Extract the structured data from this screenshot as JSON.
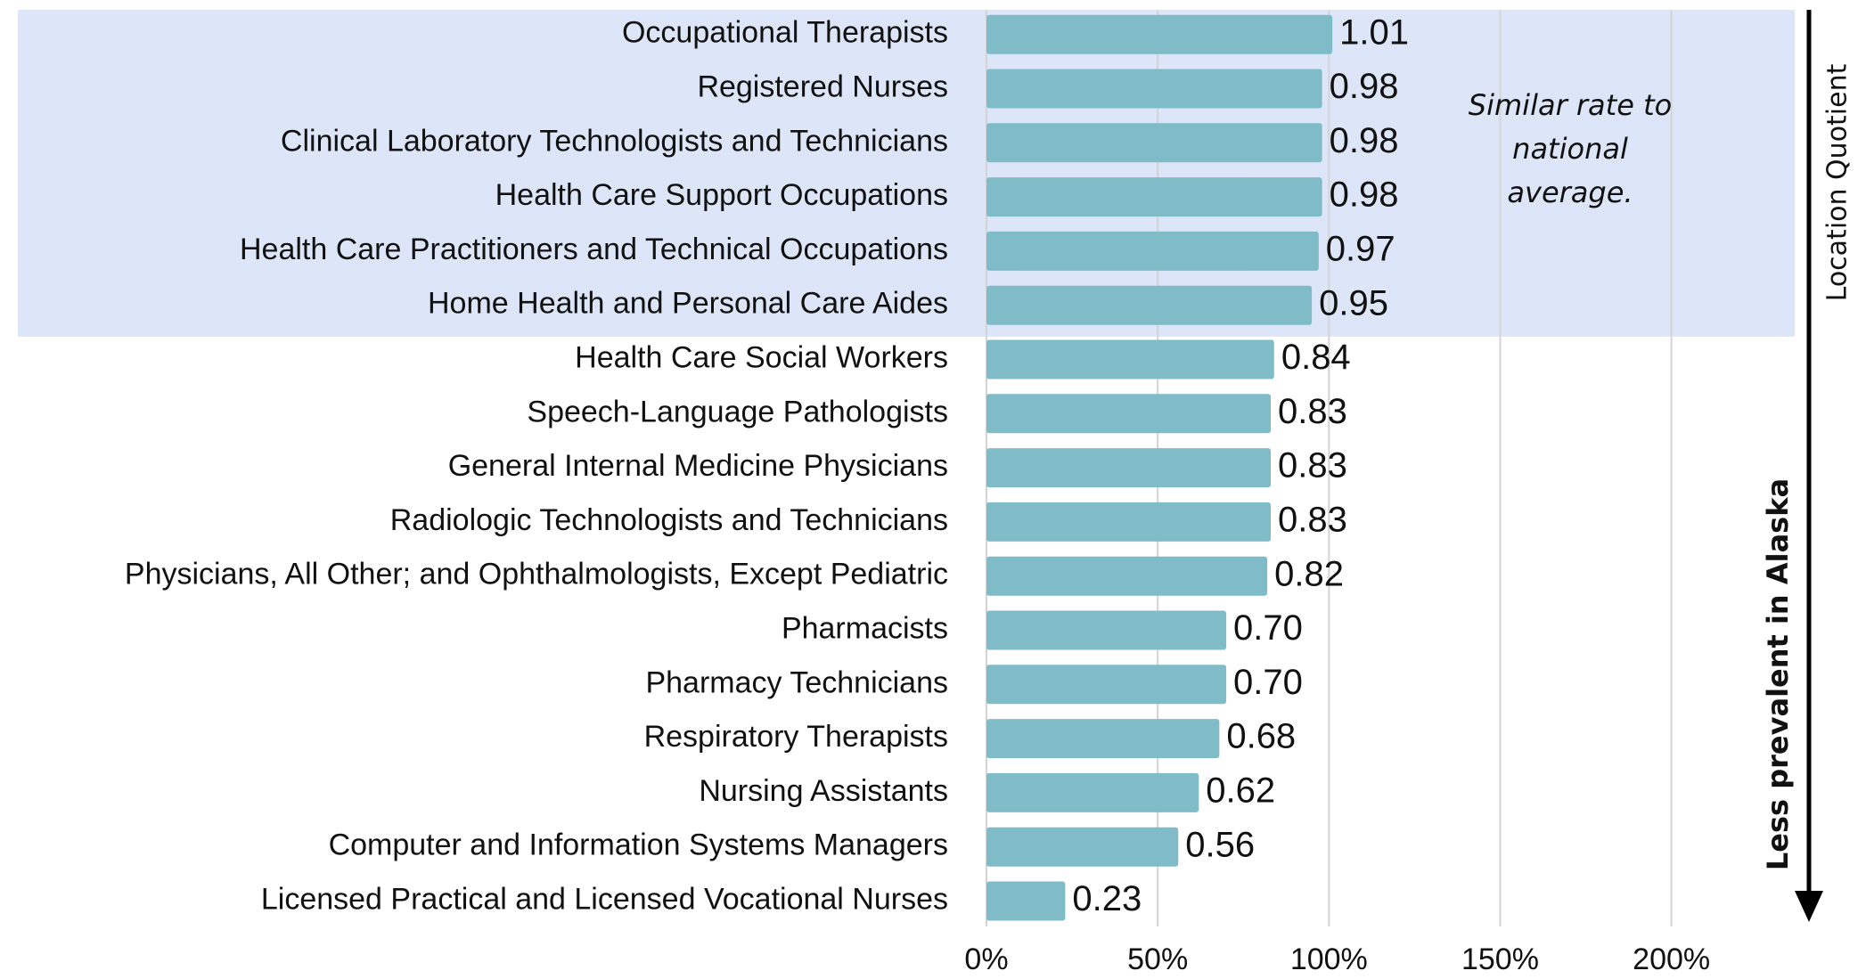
{
  "chart_data": {
    "type": "bar",
    "orientation": "horizontal",
    "categories": [
      "Occupational Therapists",
      "Registered Nurses",
      "Clinical Laboratory Technologists and Technicians",
      "Health Care Support Occupations",
      "Health Care Practitioners and Technical Occupations",
      "Home Health and Personal Care Aides",
      "Health Care Social Workers",
      "Speech-Language Pathologists",
      "General Internal Medicine Physicians",
      "Radiologic Technologists and Technicians",
      "Physicians, All Other; and Ophthalmologists, Except Pediatric",
      "Pharmacists",
      "Pharmacy Technicians",
      "Respiratory Therapists",
      "Nursing Assistants",
      "Computer and Information Systems Managers",
      "Licensed Practical and Licensed Vocational Nurses"
    ],
    "values": [
      101,
      98,
      98,
      98,
      97,
      95,
      84,
      83,
      83,
      83,
      82,
      70,
      70,
      68,
      62,
      56,
      23
    ],
    "value_labels": [
      "1.01",
      "0.98",
      "0.98",
      "0.98",
      "0.97",
      "0.95",
      "0.84",
      "0.83",
      "0.83",
      "0.83",
      "0.82",
      "0.70",
      "0.70",
      "0.68",
      "0.62",
      "0.56",
      "0.23"
    ],
    "color": "#7fbcc8",
    "xlim": [
      0,
      236
    ],
    "xticks": [
      {
        "value": 0,
        "label": "0%"
      },
      {
        "value": 50,
        "label": "50%"
      },
      {
        "value": 100,
        "label": "100%"
      },
      {
        "value": 150,
        "label": "150%"
      },
      {
        "value": 200,
        "label": "200%"
      }
    ],
    "grid": true,
    "annotation": [
      "Similar rate to",
      "national",
      "average."
    ],
    "right_label_top": "Location Quotient",
    "right_label_arrow": "Less prevalent in Alaska"
  }
}
